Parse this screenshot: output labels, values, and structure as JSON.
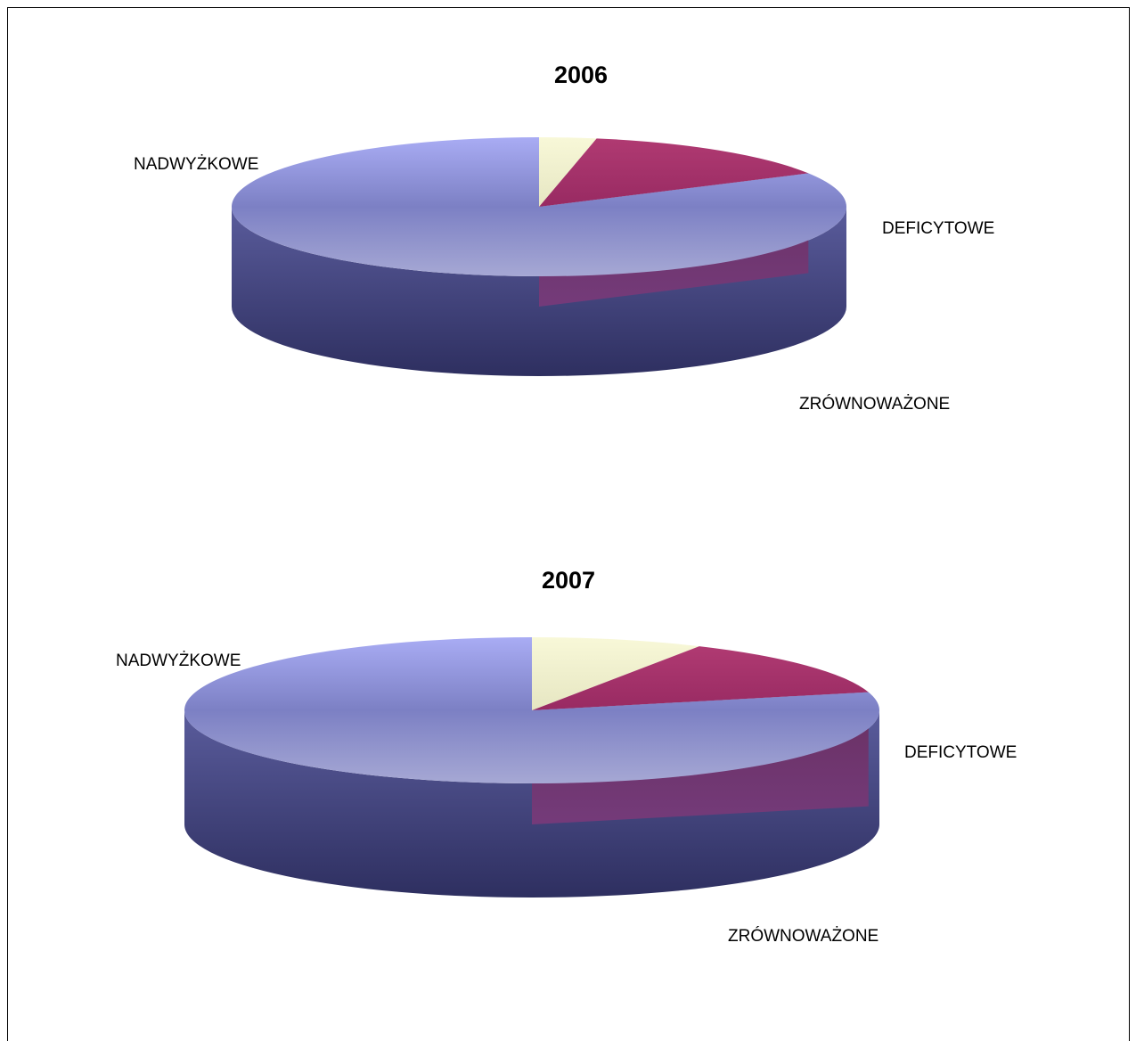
{
  "chart_data": [
    {
      "type": "pie",
      "title": "2006",
      "categories": [
        "NADWYŻKOWE",
        "DEFICYTOWE",
        "ZRÓWNOWAŻONE"
      ],
      "values": [
        83,
        3,
        14
      ],
      "colors": [
        "#9a9ee6",
        "#f4f4cc",
        "#a8306a"
      ]
    },
    {
      "type": "pie",
      "title": "2007",
      "categories": [
        "NADWYŻKOWE",
        "DEFICYTOWE",
        "ZRÓWNOWAŻONE"
      ],
      "values": [
        79,
        8,
        13
      ],
      "colors": [
        "#9a9ee6",
        "#f4f4cc",
        "#a8306a"
      ]
    }
  ]
}
